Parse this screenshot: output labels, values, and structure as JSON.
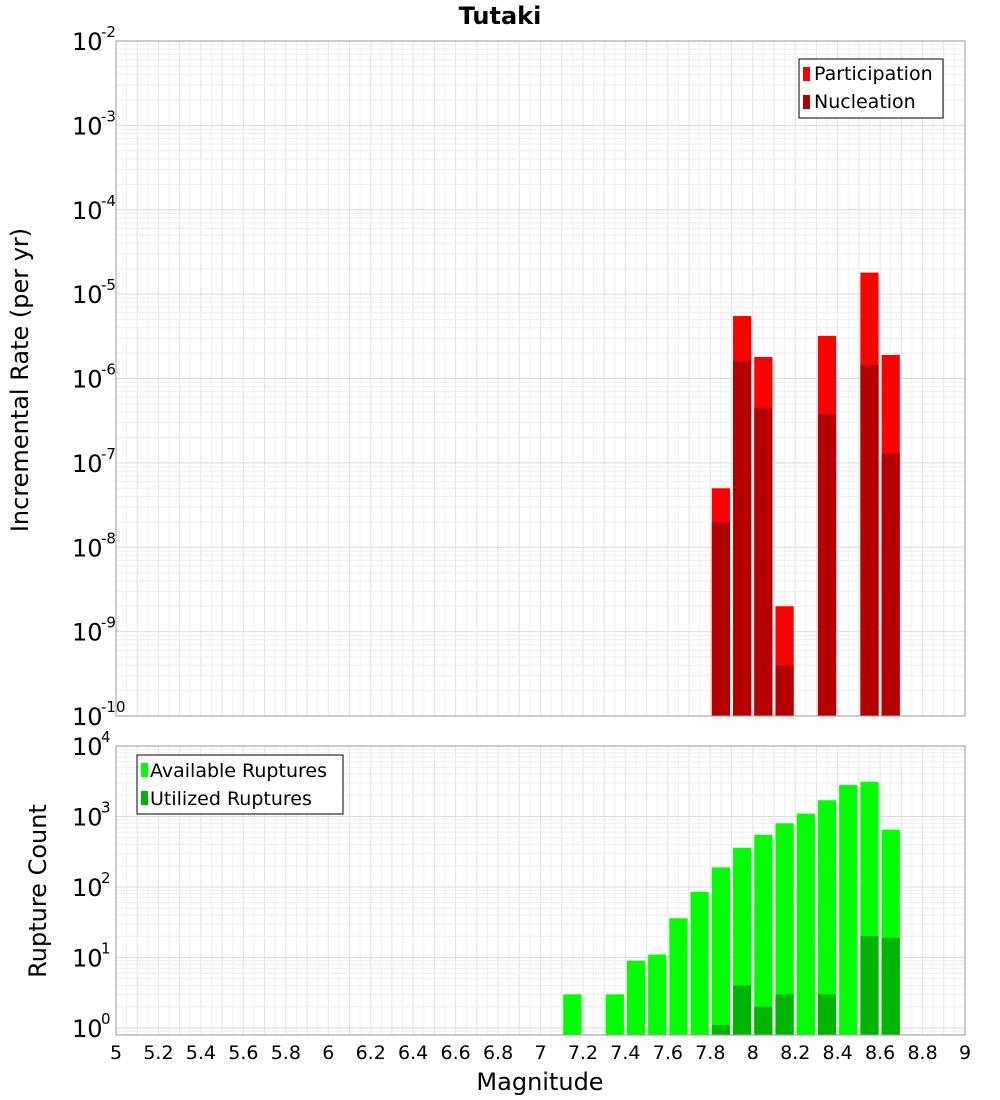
{
  "chart_data": {
    "type": "bar",
    "title": "Tutaki",
    "xlabel": "Magnitude",
    "xlim": [
      5,
      9
    ],
    "x_ticks": [
      "5",
      "5.2",
      "5.4",
      "5.6",
      "5.8",
      "6",
      "6.2",
      "6.4",
      "6.6",
      "6.8",
      "7",
      "7.2",
      "7.4",
      "7.6",
      "7.8",
      "8",
      "8.2",
      "8.4",
      "8.6",
      "8.8",
      "9"
    ],
    "panels": [
      {
        "id": "rate",
        "ylabel": "Incremental Rate (per yr)",
        "scale": "log",
        "ylim_exp": [
          -10,
          -2
        ],
        "y_ticks": [
          {
            "base": "10",
            "exp": "-2"
          },
          {
            "base": "10",
            "exp": "-3"
          },
          {
            "base": "10",
            "exp": "-4"
          },
          {
            "base": "10",
            "exp": "-5"
          },
          {
            "base": "10",
            "exp": "-6"
          },
          {
            "base": "10",
            "exp": "-7"
          },
          {
            "base": "10",
            "exp": "-8"
          },
          {
            "base": "10",
            "exp": "-9"
          },
          {
            "base": "10",
            "exp": "-10"
          }
        ],
        "legend_position": "top-right",
        "series": [
          {
            "name": "Participation",
            "color": "#ff0000",
            "points": [
              [
                7.85,
                5e-08
              ],
              [
                7.95,
                5.5e-06
              ],
              [
                8.05,
                1.8e-06
              ],
              [
                8.15,
                2e-09
              ],
              [
                8.35,
                3.2e-06
              ],
              [
                8.55,
                1.8e-05
              ],
              [
                8.65,
                1.9e-06
              ]
            ]
          },
          {
            "name": "Nucleation",
            "color": "#b40000",
            "points": [
              [
                7.85,
                2e-08
              ],
              [
                7.95,
                1.6e-06
              ],
              [
                8.05,
                4.5e-07
              ],
              [
                8.15,
                4e-10
              ],
              [
                8.35,
                3.8e-07
              ],
              [
                8.55,
                1.45e-06
              ],
              [
                8.65,
                1.3e-07
              ]
            ]
          }
        ]
      },
      {
        "id": "count",
        "ylabel": "Rupture Count",
        "scale": "log",
        "ylim_exp": [
          -0.1,
          4
        ],
        "y_ticks": [
          {
            "base": "10",
            "exp": "4"
          },
          {
            "base": "10",
            "exp": "3"
          },
          {
            "base": "10",
            "exp": "2"
          },
          {
            "base": "10",
            "exp": "1"
          },
          {
            "base": "10",
            "exp": "0"
          }
        ],
        "legend_position": "top-left",
        "series": [
          {
            "name": "Available Ruptures",
            "color": "#00ff00",
            "points": [
              [
                7.15,
                3
              ],
              [
                7.35,
                3
              ],
              [
                7.45,
                9
              ],
              [
                7.55,
                11
              ],
              [
                7.65,
                36
              ],
              [
                7.75,
                85
              ],
              [
                7.85,
                190
              ],
              [
                7.95,
                360
              ],
              [
                8.05,
                550
              ],
              [
                8.15,
                800
              ],
              [
                8.25,
                1100
              ],
              [
                8.35,
                1700
              ],
              [
                8.45,
                2800
              ],
              [
                8.55,
                3100
              ],
              [
                8.65,
                650
              ]
            ]
          },
          {
            "name": "Utilized Ruptures",
            "color": "#00b400",
            "points": [
              [
                7.85,
                1.1
              ],
              [
                7.95,
                4
              ],
              [
                8.05,
                2
              ],
              [
                8.15,
                3
              ],
              [
                8.35,
                3
              ],
              [
                8.55,
                20
              ],
              [
                8.65,
                19
              ]
            ]
          }
        ]
      }
    ]
  }
}
